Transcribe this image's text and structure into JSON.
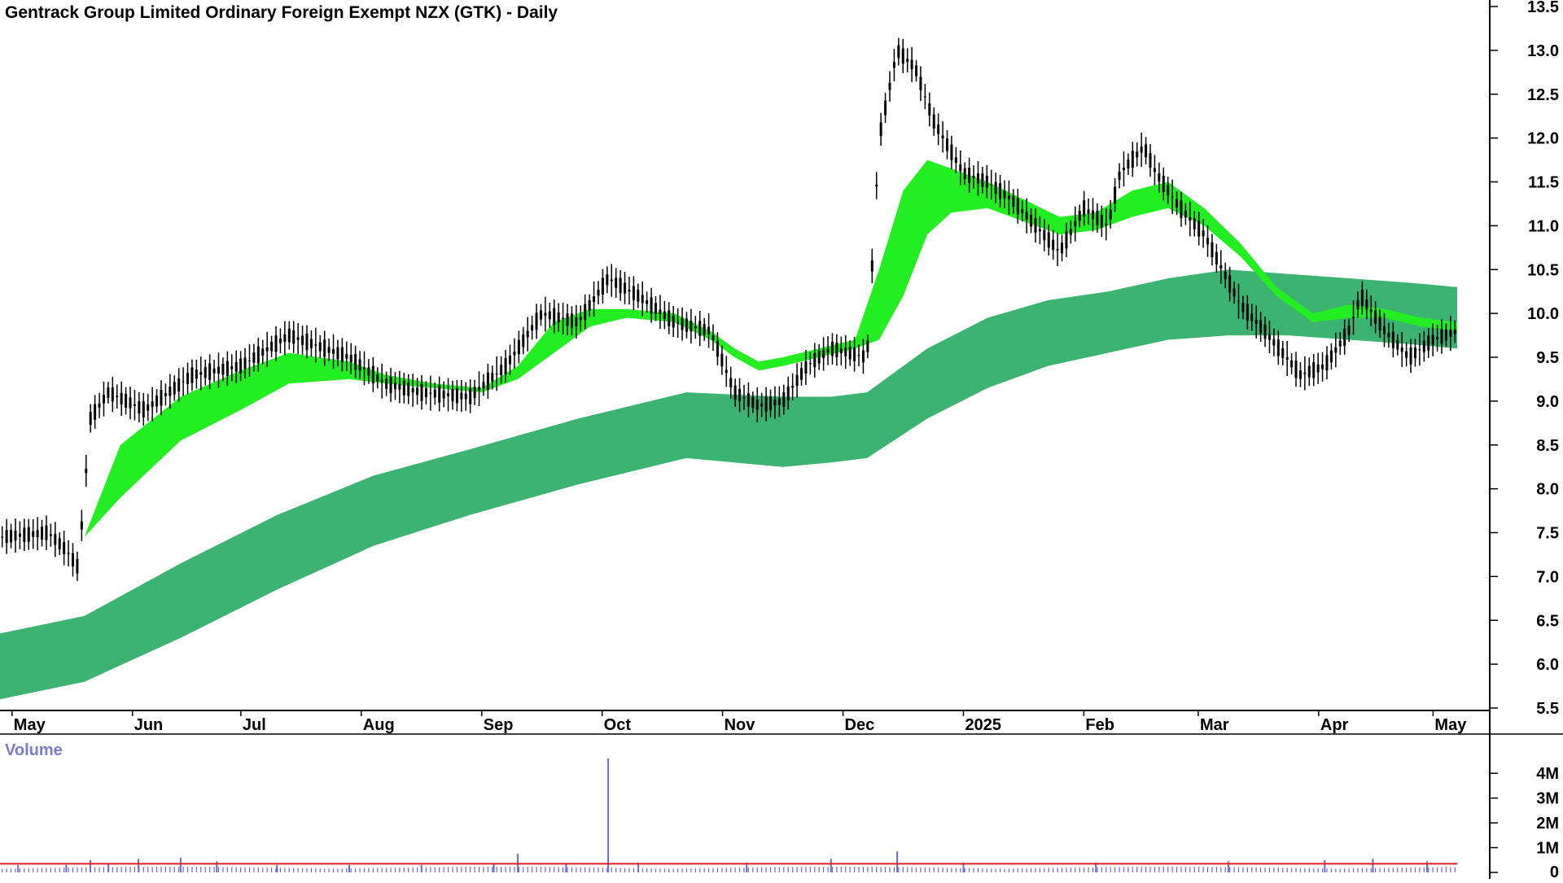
{
  "colors": {
    "background": "#ffffff",
    "long_band_up": "#3cb371",
    "long_band_down": "#ff6a2a",
    "short_band_up": "#22ee22",
    "short_band_down": "#ff6a2a",
    "short_band_weak": "#ffb3b3",
    "candle": "#000000",
    "volume_bars": "#6b6bcf",
    "volume_avg": "#e02020",
    "volume_label": "#7b7bd0",
    "axis": "#000000"
  },
  "chart_data": {
    "type": "candlestick",
    "title": "Gentrack Group Limited Ordinary Foreign Exempt NZX (GTK) - Daily",
    "ylim": [
      5.5,
      13.5
    ],
    "y_ticks": [
      "5.5",
      "6.0",
      "6.5",
      "7.0",
      "7.5",
      "8.0",
      "8.5",
      "9.0",
      "9.5",
      "10.0",
      "10.5",
      "11.0",
      "11.5",
      "12.0",
      "12.5",
      "13.0",
      "13.5"
    ],
    "x_range": [
      0,
      12.1
    ],
    "x_ticks": [
      {
        "label": "May",
        "x": 0.1
      },
      {
        "label": "Jun",
        "x": 1.1
      },
      {
        "label": "Jul",
        "x": 2.0
      },
      {
        "label": "Aug",
        "x": 3.0
      },
      {
        "label": "Sep",
        "x": 4.0
      },
      {
        "label": "Oct",
        "x": 5.0
      },
      {
        "label": "Nov",
        "x": 6.0
      },
      {
        "label": "Dec",
        "x": 7.0
      },
      {
        "label": "2025",
        "x": 8.0
      },
      {
        "label": "Feb",
        "x": 9.0
      },
      {
        "label": "Mar",
        "x": 9.95
      },
      {
        "label": "Apr",
        "x": 10.95
      },
      {
        "label": "May",
        "x": 11.9
      }
    ],
    "price_path": [
      [
        0.0,
        7.45
      ],
      [
        0.4,
        7.5
      ],
      [
        0.55,
        7.3
      ],
      [
        0.65,
        7.1
      ],
      [
        0.75,
        8.8
      ],
      [
        0.9,
        9.1
      ],
      [
        1.2,
        8.9
      ],
      [
        1.6,
        9.3
      ],
      [
        2.0,
        9.4
      ],
      [
        2.4,
        9.75
      ],
      [
        2.9,
        9.5
      ],
      [
        3.2,
        9.2
      ],
      [
        3.5,
        9.1
      ],
      [
        3.9,
        9.05
      ],
      [
        4.2,
        9.4
      ],
      [
        4.5,
        10.0
      ],
      [
        4.8,
        9.9
      ],
      [
        5.05,
        10.4
      ],
      [
        5.3,
        10.2
      ],
      [
        5.6,
        9.9
      ],
      [
        5.9,
        9.8
      ],
      [
        6.1,
        9.1
      ],
      [
        6.3,
        8.95
      ],
      [
        6.5,
        9.0
      ],
      [
        6.7,
        9.4
      ],
      [
        6.9,
        9.6
      ],
      [
        7.2,
        9.5
      ],
      [
        7.3,
        12.0
      ],
      [
        7.45,
        13.0
      ],
      [
        7.6,
        12.8
      ],
      [
        7.75,
        12.2
      ],
      [
        8.0,
        11.6
      ],
      [
        8.2,
        11.5
      ],
      [
        8.4,
        11.3
      ],
      [
        8.6,
        11.0
      ],
      [
        8.8,
        10.7
      ],
      [
        9.0,
        11.2
      ],
      [
        9.2,
        11.0
      ],
      [
        9.3,
        11.6
      ],
      [
        9.5,
        11.9
      ],
      [
        9.6,
        11.6
      ],
      [
        9.8,
        11.2
      ],
      [
        10.0,
        10.9
      ],
      [
        10.3,
        10.1
      ],
      [
        10.5,
        9.8
      ],
      [
        10.8,
        9.3
      ],
      [
        11.0,
        9.4
      ],
      [
        11.2,
        9.8
      ],
      [
        11.3,
        10.2
      ],
      [
        11.5,
        9.8
      ],
      [
        11.7,
        9.5
      ],
      [
        11.9,
        9.7
      ],
      [
        12.1,
        9.8
      ]
    ],
    "long_band_upper": [
      [
        0.0,
        6.35
      ],
      [
        0.7,
        6.55
      ],
      [
        1.5,
        7.15
      ],
      [
        2.3,
        7.7
      ],
      [
        3.1,
        8.15
      ],
      [
        3.9,
        8.45
      ],
      [
        4.8,
        8.8
      ],
      [
        5.7,
        9.1
      ],
      [
        6.5,
        9.05
      ],
      [
        6.9,
        9.05
      ],
      [
        7.2,
        9.1
      ],
      [
        7.7,
        9.6
      ],
      [
        8.2,
        9.95
      ],
      [
        8.7,
        10.15
      ],
      [
        9.2,
        10.25
      ],
      [
        9.7,
        10.4
      ],
      [
        10.2,
        10.5
      ],
      [
        10.7,
        10.45
      ],
      [
        11.2,
        10.4
      ],
      [
        11.7,
        10.35
      ],
      [
        12.1,
        10.3
      ]
    ],
    "long_band_lower": [
      [
        0.0,
        5.6
      ],
      [
        0.7,
        5.8
      ],
      [
        1.5,
        6.3
      ],
      [
        2.3,
        6.85
      ],
      [
        3.1,
        7.35
      ],
      [
        3.9,
        7.7
      ],
      [
        4.8,
        8.05
      ],
      [
        5.7,
        8.35
      ],
      [
        6.5,
        8.25
      ],
      [
        6.9,
        8.3
      ],
      [
        7.2,
        8.35
      ],
      [
        7.7,
        8.8
      ],
      [
        8.2,
        9.15
      ],
      [
        8.7,
        9.4
      ],
      [
        9.2,
        9.55
      ],
      [
        9.7,
        9.7
      ],
      [
        10.2,
        9.75
      ],
      [
        10.7,
        9.75
      ],
      [
        11.2,
        9.7
      ],
      [
        11.7,
        9.65
      ],
      [
        12.1,
        9.6
      ]
    ],
    "short_band_upper": [
      [
        0.7,
        7.45
      ],
      [
        1.0,
        8.5
      ],
      [
        1.5,
        9.05
      ],
      [
        2.0,
        9.35
      ],
      [
        2.4,
        9.55
      ],
      [
        2.9,
        9.45
      ],
      [
        3.2,
        9.3
      ],
      [
        3.6,
        9.2
      ],
      [
        4.0,
        9.15
      ],
      [
        4.3,
        9.4
      ],
      [
        4.6,
        9.9
      ],
      [
        4.9,
        10.05
      ],
      [
        5.2,
        10.05
      ],
      [
        5.6,
        10.0
      ],
      [
        5.9,
        9.8
      ],
      [
        6.1,
        9.6
      ],
      [
        6.3,
        9.45
      ],
      [
        6.5,
        9.5
      ],
      [
        6.8,
        9.6
      ],
      [
        7.1,
        9.7
      ],
      [
        7.3,
        10.5
      ],
      [
        7.5,
        11.4
      ],
      [
        7.7,
        11.75
      ],
      [
        7.9,
        11.65
      ],
      [
        8.2,
        11.5
      ],
      [
        8.5,
        11.3
      ],
      [
        8.8,
        11.1
      ],
      [
        9.1,
        11.15
      ],
      [
        9.4,
        11.4
      ],
      [
        9.7,
        11.5
      ],
      [
        10.0,
        11.2
      ],
      [
        10.3,
        10.8
      ],
      [
        10.6,
        10.3
      ],
      [
        10.9,
        10.0
      ],
      [
        11.2,
        10.1
      ],
      [
        11.5,
        10.05
      ],
      [
        11.8,
        9.95
      ],
      [
        12.1,
        9.9
      ]
    ],
    "short_band_lower": [
      [
        0.7,
        7.45
      ],
      [
        1.0,
        7.9
      ],
      [
        1.5,
        8.55
      ],
      [
        2.0,
        8.9
      ],
      [
        2.4,
        9.2
      ],
      [
        2.9,
        9.25
      ],
      [
        3.2,
        9.2
      ],
      [
        3.6,
        9.15
      ],
      [
        4.0,
        9.1
      ],
      [
        4.3,
        9.25
      ],
      [
        4.6,
        9.55
      ],
      [
        4.9,
        9.85
      ],
      [
        5.2,
        9.95
      ],
      [
        5.6,
        9.9
      ],
      [
        5.9,
        9.7
      ],
      [
        6.1,
        9.5
      ],
      [
        6.3,
        9.35
      ],
      [
        6.5,
        9.4
      ],
      [
        6.8,
        9.5
      ],
      [
        7.1,
        9.6
      ],
      [
        7.3,
        9.7
      ],
      [
        7.5,
        10.2
      ],
      [
        7.7,
        10.9
      ],
      [
        7.9,
        11.15
      ],
      [
        8.2,
        11.2
      ],
      [
        8.5,
        11.05
      ],
      [
        8.8,
        10.9
      ],
      [
        9.1,
        10.95
      ],
      [
        9.4,
        11.1
      ],
      [
        9.7,
        11.2
      ],
      [
        10.0,
        11.0
      ],
      [
        10.3,
        10.65
      ],
      [
        10.6,
        10.2
      ],
      [
        10.9,
        9.9
      ],
      [
        11.2,
        9.95
      ],
      [
        11.5,
        9.95
      ],
      [
        11.8,
        9.85
      ],
      [
        12.1,
        9.8
      ]
    ],
    "volume": {
      "label": "Volume",
      "ylim": [
        0,
        4.5
      ],
      "y_ticks": [
        "0",
        "1M",
        "2M",
        "3M",
        "4M"
      ],
      "avg_level": 0.35,
      "spikes": [
        {
          "x": 0.15,
          "v": 0.3
        },
        {
          "x": 0.55,
          "v": 0.3
        },
        {
          "x": 0.75,
          "v": 0.5
        },
        {
          "x": 0.9,
          "v": 0.35
        },
        {
          "x": 1.15,
          "v": 0.55
        },
        {
          "x": 1.5,
          "v": 0.6
        },
        {
          "x": 1.8,
          "v": 0.45
        },
        {
          "x": 2.3,
          "v": 0.3
        },
        {
          "x": 2.9,
          "v": 0.3
        },
        {
          "x": 3.5,
          "v": 0.3
        },
        {
          "x": 4.1,
          "v": 0.35
        },
        {
          "x": 4.3,
          "v": 0.75
        },
        {
          "x": 4.7,
          "v": 0.35
        },
        {
          "x": 5.05,
          "v": 4.6
        },
        {
          "x": 5.3,
          "v": 0.4
        },
        {
          "x": 6.2,
          "v": 0.4
        },
        {
          "x": 6.9,
          "v": 0.55
        },
        {
          "x": 7.45,
          "v": 0.85
        },
        {
          "x": 8.0,
          "v": 0.4
        },
        {
          "x": 9.1,
          "v": 0.4
        },
        {
          "x": 10.2,
          "v": 0.45
        },
        {
          "x": 11.0,
          "v": 0.5
        },
        {
          "x": 11.4,
          "v": 0.55
        },
        {
          "x": 11.85,
          "v": 0.45
        }
      ]
    }
  }
}
